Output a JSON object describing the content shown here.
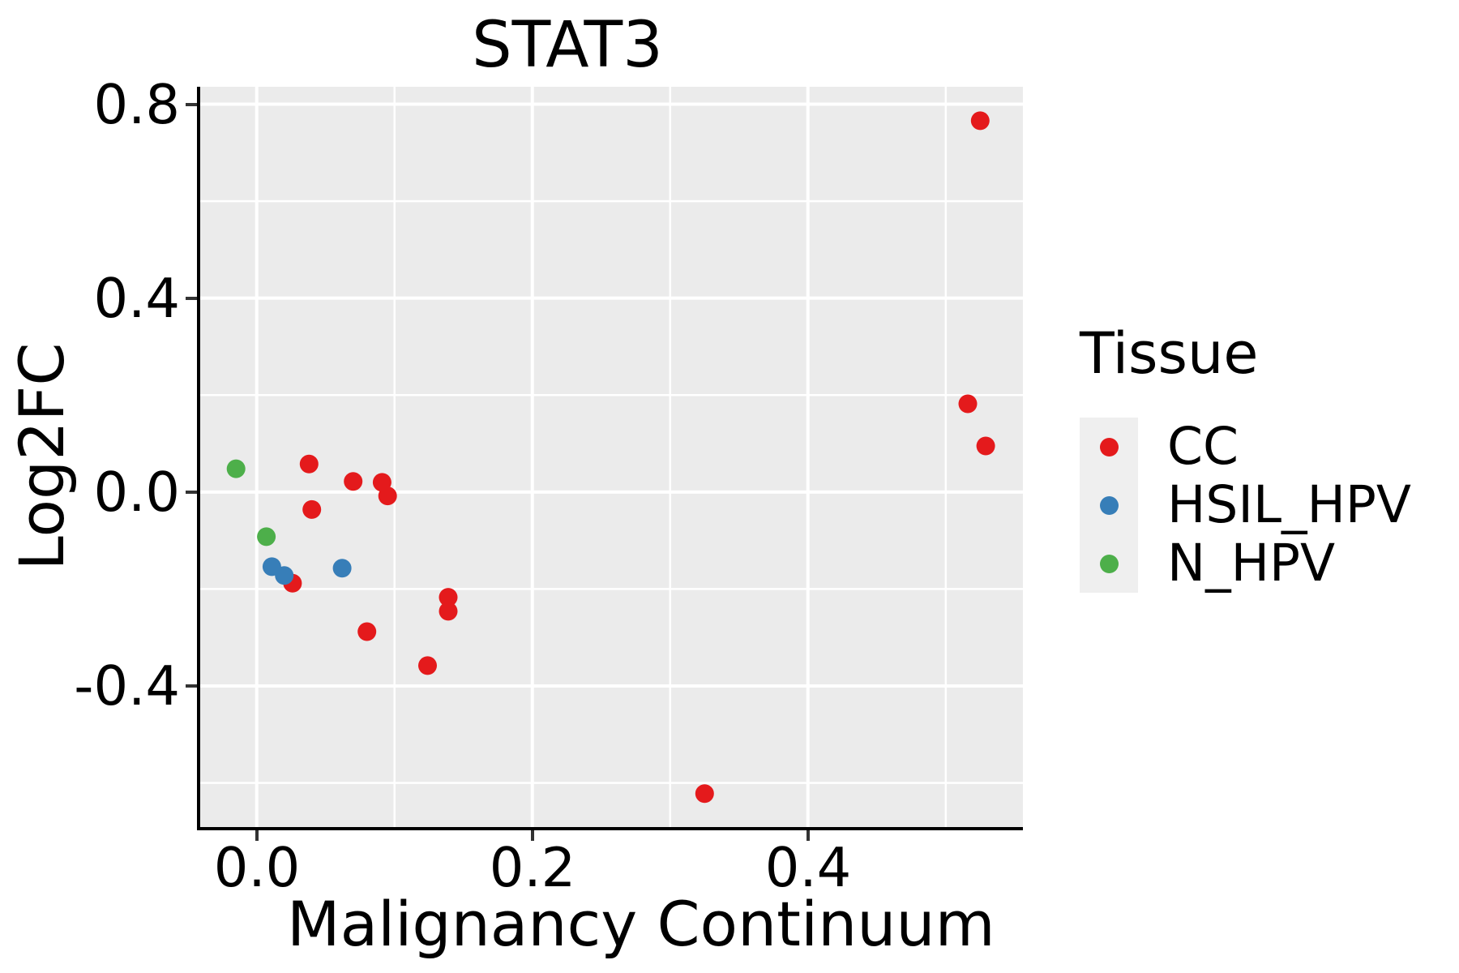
{
  "title": "STAT3",
  "axes": {
    "x": {
      "title": "Malignancy Continuum",
      "ticks": [
        {
          "label": "0.0",
          "value": 0.0
        },
        {
          "label": "0.2",
          "value": 0.2
        },
        {
          "label": "0.4",
          "value": 0.4
        }
      ]
    },
    "y": {
      "title": "Log2FC",
      "ticks": [
        {
          "label": "0.8",
          "value": 0.8
        },
        {
          "label": "0.4",
          "value": 0.4
        },
        {
          "label": "0.0",
          "value": 0.0
        },
        {
          "label": "-0.4",
          "value": -0.4
        }
      ]
    }
  },
  "legend": {
    "title": "Tissue",
    "position": "right"
  },
  "chart_data": {
    "type": "scatter",
    "title": "STAT3",
    "xlabel": "Malignancy Continuum",
    "ylabel": "Log2FC",
    "xlim": [
      -0.041,
      0.556
    ],
    "ylim": [
      -0.691,
      0.836
    ],
    "x_major_ticks": [
      0.0,
      0.2,
      0.4
    ],
    "x_minor_ticks": [
      0.1,
      0.3,
      0.5
    ],
    "y_major_ticks": [
      -0.4,
      0.0,
      0.4,
      0.8
    ],
    "y_minor_ticks": [
      -0.6,
      -0.2,
      0.2,
      0.6
    ],
    "grid": true,
    "legend_position": "right",
    "legend_title": "Tissue",
    "series": [
      {
        "name": "CC",
        "color": "#E41A1C",
        "points": [
          [
            0.525,
            0.766
          ],
          [
            0.516,
            0.182
          ],
          [
            0.529,
            0.095
          ],
          [
            0.038,
            0.058
          ],
          [
            0.07,
            0.022
          ],
          [
            0.091,
            0.02
          ],
          [
            0.095,
            -0.008
          ],
          [
            0.04,
            -0.036
          ],
          [
            0.026,
            -0.188
          ],
          [
            0.139,
            -0.217
          ],
          [
            0.139,
            -0.246
          ],
          [
            0.08,
            -0.288
          ],
          [
            0.124,
            -0.358
          ],
          [
            0.325,
            -0.622
          ]
        ]
      },
      {
        "name": "HSIL_HPV",
        "color": "#377EB8",
        "points": [
          [
            0.011,
            -0.154
          ],
          [
            0.02,
            -0.172
          ],
          [
            0.062,
            -0.157
          ]
        ]
      },
      {
        "name": "N_HPV",
        "color": "#4DAF4A",
        "points": [
          [
            -0.015,
            0.048
          ],
          [
            0.007,
            -0.092
          ]
        ]
      }
    ]
  },
  "style": {
    "panel_bg": "#EBEBEB",
    "grid_color": "#FFFFFF",
    "axis_color": "#000000",
    "tick_color": "#333333",
    "legend_key_bg": "#EFEFEF",
    "point_radius": 11.5,
    "major_grid_width": 4,
    "minor_grid_width": 2.5
  }
}
